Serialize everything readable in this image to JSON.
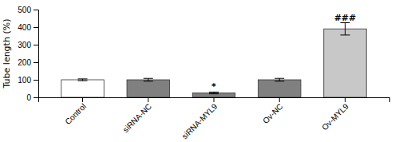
{
  "chart_data": {
    "type": "bar",
    "categories": [
      "Control",
      "siRNA-NC",
      "siRNA-MYL9",
      "Ov-NC",
      "Ov-MYL9"
    ],
    "values": [
      100,
      100,
      25,
      100,
      390
    ],
    "errors": [
      5,
      8,
      5,
      8,
      35
    ],
    "colors": [
      "#ffffff",
      "#808080",
      "#808080",
      "#808080",
      "#c8c8c8"
    ],
    "ylabel": "Tube length (%)",
    "ylim": [
      0,
      500
    ],
    "yticks": [
      0,
      100,
      200,
      300,
      400,
      500
    ],
    "grid": false,
    "annotations": [
      {
        "text": "*",
        "category": "siRNA-MYL9"
      },
      {
        "text": "###",
        "category": "Ov-MYL9"
      }
    ]
  }
}
